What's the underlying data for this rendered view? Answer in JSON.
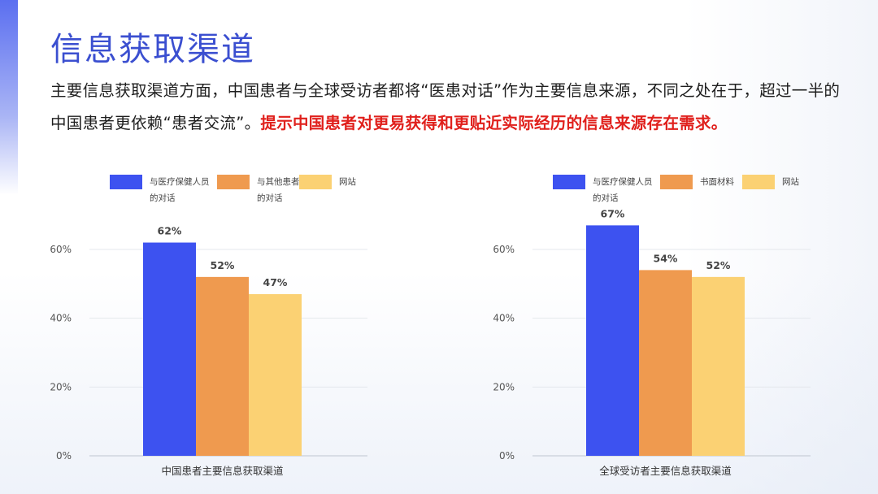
{
  "slide": {
    "title": "信息获取渠道",
    "paragraph": {
      "normal": "主要信息获取渠道方面，中国患者与全球受访者都将“医患对话”作为主要信息来源，不同之处在于，超过一半的中国患者更依赖“患者交流”。",
      "highlight": "提示中国患者对更易获得和更贴近实际经历的信息来源存在需求。"
    }
  },
  "colors": {
    "title": "#3b4fd0",
    "highlight": "#e0201c"
  },
  "chart_data": [
    {
      "type": "bar",
      "categories": [
        "中国患者主要信息获取渠道"
      ],
      "xlabel": "中国患者主要信息获取渠道",
      "ylim": [
        0,
        70
      ],
      "yticks": [
        "0%",
        "20%",
        "40%",
        "60%"
      ],
      "grid": true,
      "legend_position": "top",
      "series": [
        {
          "name": "与医疗保健人员的对话",
          "legend_lines": [
            "与医疗保健人员",
            "的对话"
          ],
          "values": [
            62
          ],
          "label": "62%",
          "color": "#3d52f0"
        },
        {
          "name": "与其他患者的对话",
          "legend_lines": [
            "与其他患者",
            "的对话"
          ],
          "values": [
            52
          ],
          "label": "52%",
          "color": "#ef9a4f"
        },
        {
          "name": "网站",
          "legend_lines": [
            "网站"
          ],
          "values": [
            47
          ],
          "label": "47%",
          "color": "#fbd173"
        }
      ]
    },
    {
      "type": "bar",
      "categories": [
        "全球受访者主要信息获取渠道"
      ],
      "xlabel": "全球受访者主要信息获取渠道",
      "ylim": [
        0,
        70
      ],
      "yticks": [
        "0%",
        "20%",
        "40%",
        "60%"
      ],
      "grid": true,
      "legend_position": "top",
      "series": [
        {
          "name": "与医疗保健人员的对话",
          "legend_lines": [
            "与医疗保健人员",
            "的对话"
          ],
          "values": [
            67
          ],
          "label": "67%",
          "color": "#3d52f0"
        },
        {
          "name": "书面材料",
          "legend_lines": [
            "书面材料"
          ],
          "values": [
            54
          ],
          "label": "54%",
          "color": "#ef9a4f"
        },
        {
          "name": "网站",
          "legend_lines": [
            "网站"
          ],
          "values": [
            52
          ],
          "label": "52%",
          "color": "#fbd173"
        }
      ]
    }
  ]
}
